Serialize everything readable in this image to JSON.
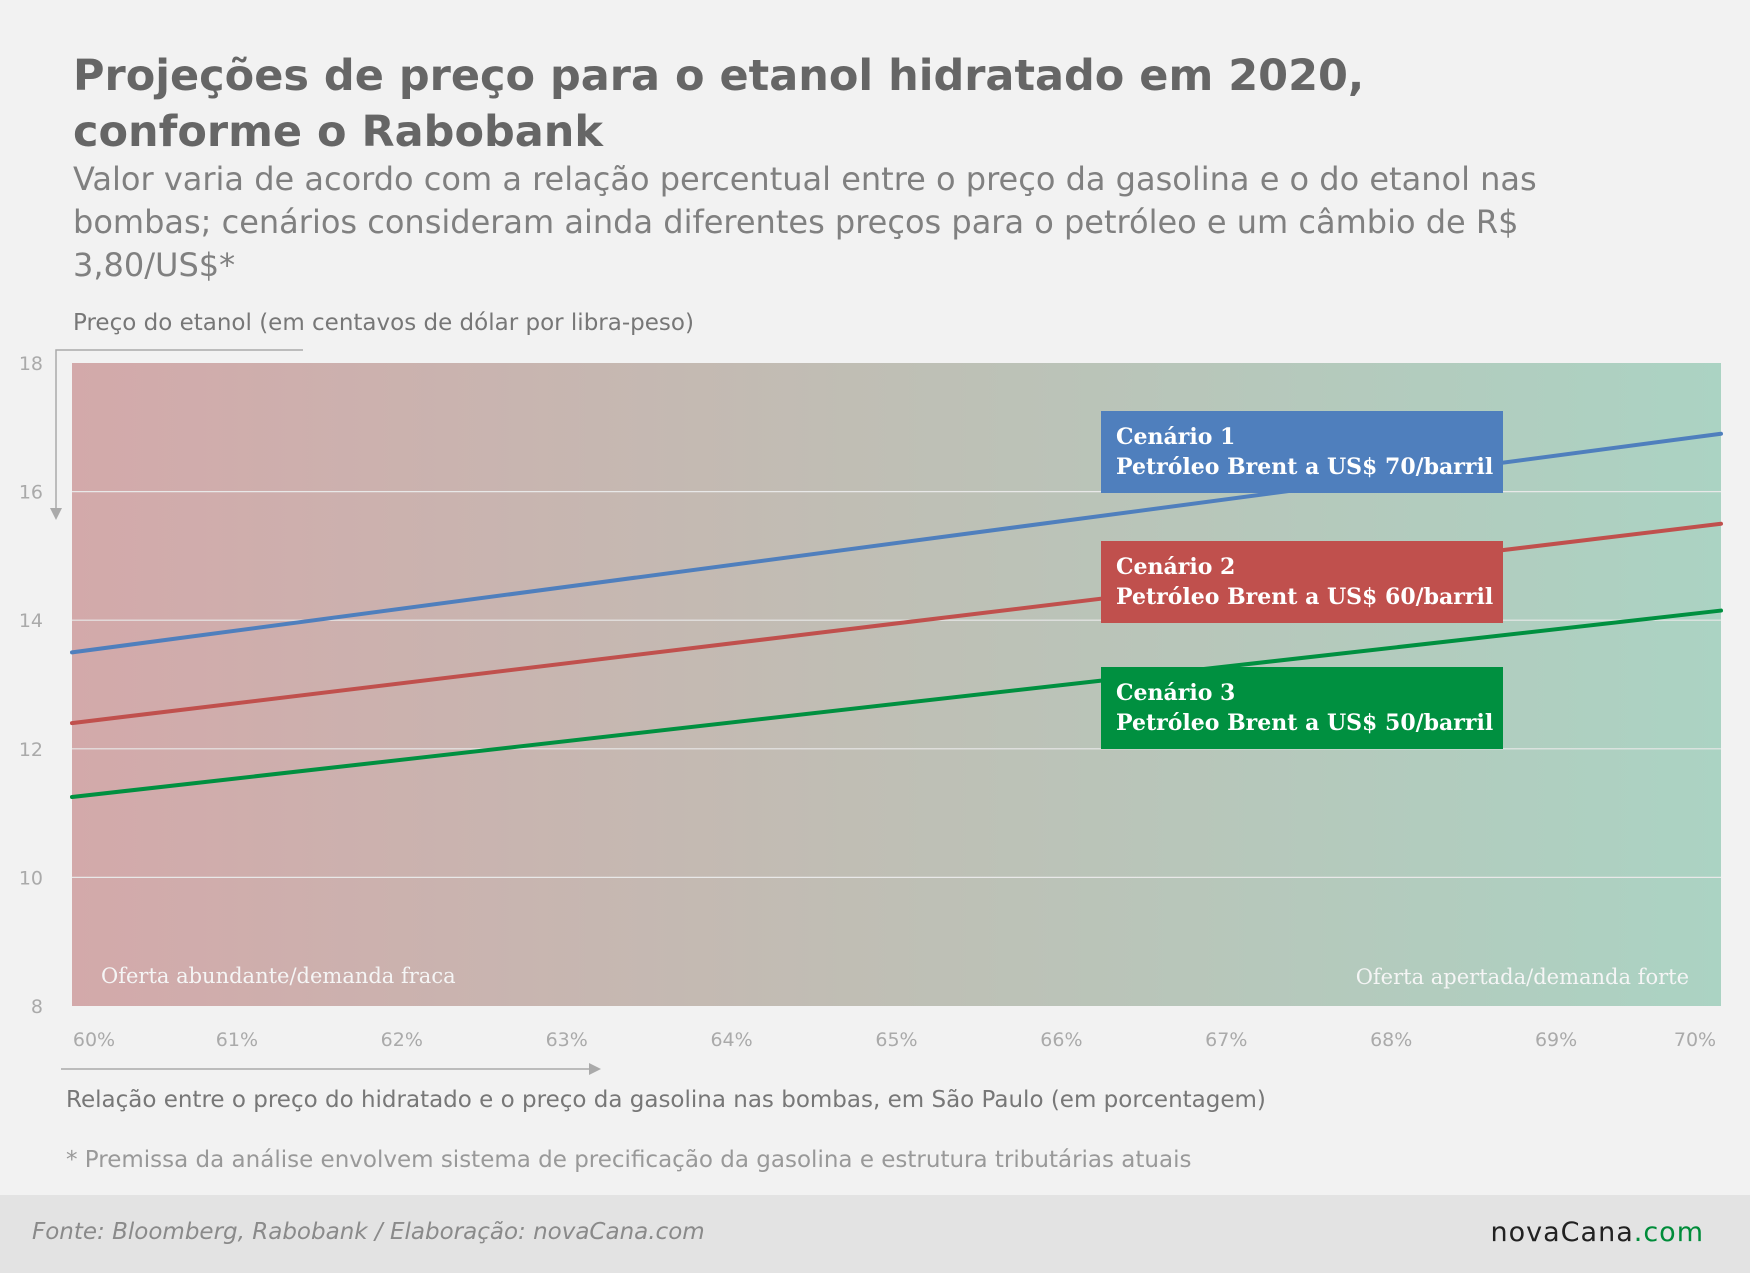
{
  "chart_data": {
    "type": "line",
    "title": "Projeções de preço para o etanol hidratado em 2020, conforme o Rabobank",
    "subtitle": "Valor varia de acordo com a relação percentual entre o preço da gasolina e o do etanol nas bombas; cenários consideram ainda diferentes preços para o petróleo e um câmbio de R$ 3,80/US$*",
    "ylabel": "Preço do etanol (em centavos de dólar por libra-peso)",
    "xlabel": "Relação entre o preço do hidratado e o preço da gasolina nas bombas, em São Paulo (em porcentagem)",
    "x": [
      60,
      70
    ],
    "x_tick_labels": [
      "60%",
      "61%",
      "62%",
      "63%",
      "64%",
      "65%",
      "66%",
      "67%",
      "68%",
      "69%",
      "70%"
    ],
    "x_ticks": [
      60,
      61,
      62,
      63,
      64,
      65,
      66,
      67,
      68,
      69,
      70
    ],
    "xlim": [
      60,
      70
    ],
    "y_ticks": [
      8,
      10,
      12,
      14,
      16,
      18
    ],
    "y_tick_labels": [
      "8",
      "10",
      "12",
      "14",
      "16",
      "18"
    ],
    "ylim": [
      8,
      18
    ],
    "grid": true,
    "series": [
      {
        "name": "Cenário 1",
        "name_line2": "Petróleo Brent a US$ 70/barril",
        "values": [
          13.5,
          16.9
        ],
        "color": "#4f7fbd"
      },
      {
        "name": "Cenário 2",
        "name_line2": "Petróleo Brent a US$ 60/barril",
        "values": [
          12.4,
          15.5
        ],
        "color": "#c0504d"
      },
      {
        "name": "Cenário 3",
        "name_line2": "Petróleo Brent a US$ 50/barril",
        "values": [
          11.25,
          14.15
        ],
        "color": "#009040"
      }
    ],
    "annotations": {
      "left_zone": "Oferta abundante/demanda fraca",
      "right_zone": "Oferta apertada/demanda forte"
    },
    "background_colors": {
      "left": "#d3a9aa",
      "middle": "#bfbfb5",
      "right": "#abd3c3"
    }
  },
  "footnote": "* Premissa da análise envolvem sistema de precificação da gasolina e estrutura tributárias atuais",
  "footer": {
    "source": "Fonte: Bloomberg, Rabobank / Elaboração: novaCana.com",
    "logo_part1": "novaCana",
    "logo_part2": ".com"
  }
}
